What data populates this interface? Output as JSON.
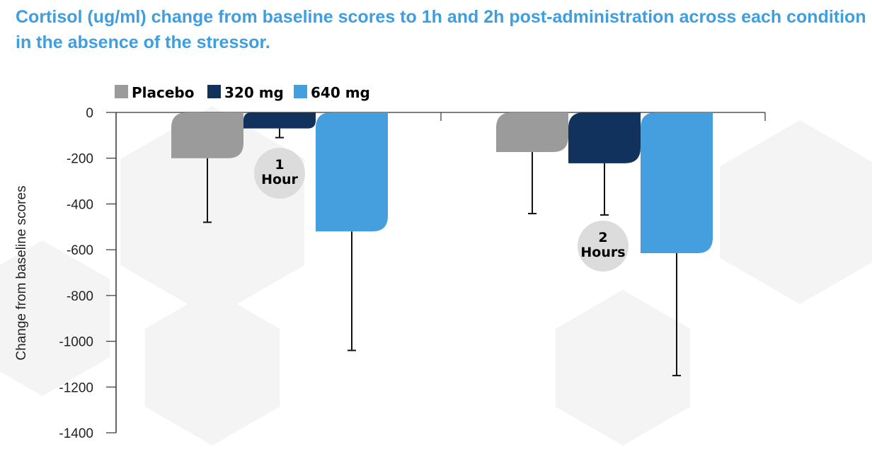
{
  "chart_data": {
    "type": "bar",
    "title": "Cortisol (ug/ml) change from baseline scores to 1h and 2h post-administration across each condition in the absence of the stressor.",
    "ylabel": "Change from baseline scores",
    "xlabel": "",
    "categories": [
      "1 Hour",
      "2 Hours"
    ],
    "category_labels": [
      [
        "1",
        "Hour"
      ],
      [
        "2",
        "Hours"
      ]
    ],
    "ylim": [
      -1400,
      0
    ],
    "yticks": [
      0,
      -200,
      -400,
      -600,
      -800,
      -1000,
      -1200,
      -1400
    ],
    "legend_position": "top-left",
    "series": [
      {
        "name": "Placebo",
        "color": "#9b9b9b",
        "values": [
          -200,
          -173
        ],
        "error_lower": [
          -480,
          -442
        ]
      },
      {
        "name": "320 mg",
        "color": "#12325e",
        "values": [
          -70,
          -222
        ],
        "error_lower": [
          -110,
          -448
        ]
      },
      {
        "name": "640 mg",
        "color": "#459edd",
        "values": [
          -520,
          -615
        ],
        "error_lower": [
          -1040,
          -1150
        ]
      }
    ]
  }
}
